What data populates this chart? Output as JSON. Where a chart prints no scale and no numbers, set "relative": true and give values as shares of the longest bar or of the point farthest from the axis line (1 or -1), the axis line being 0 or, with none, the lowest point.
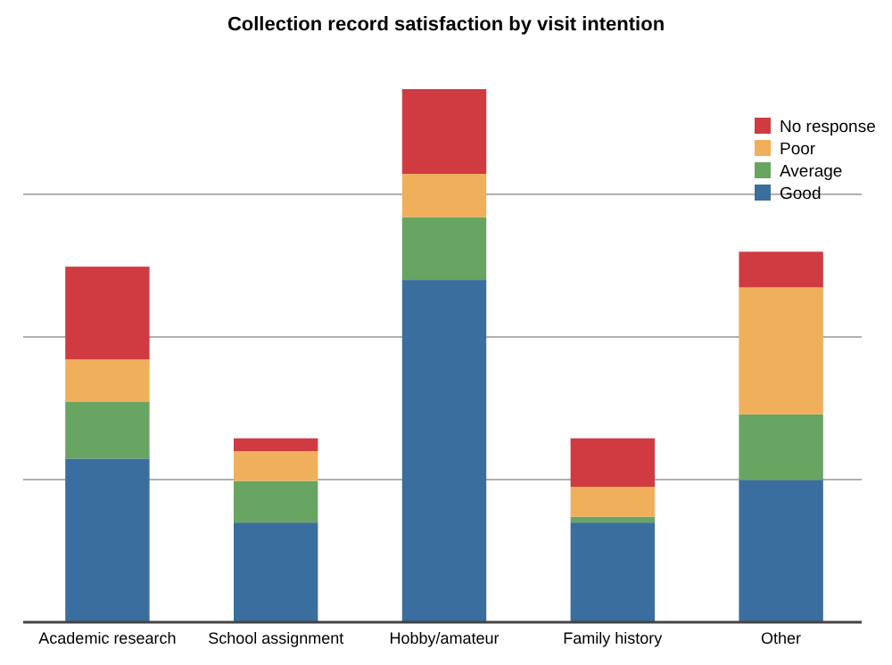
{
  "chart_data": {
    "type": "bar",
    "title": "Collection record satisfaction by visit intention",
    "categories": [
      "Academic research",
      "School assignment",
      "Hobby/amateur",
      "Family history",
      "Other"
    ],
    "stacked": true,
    "relative": true,
    "grid": "y",
    "legend": "top right",
    "series": [
      {
        "name": "Good",
        "color": "#3a6e9e",
        "values": [
          0.307,
          0.187,
          0.642,
          0.187,
          0.267
        ]
      },
      {
        "name": "Average",
        "color": "#68a462",
        "values": [
          0.106,
          0.078,
          0.118,
          0.011,
          0.123
        ]
      },
      {
        "name": "Poor",
        "color": "#efaf5b",
        "values": [
          0.08,
          0.056,
          0.081,
          0.056,
          0.238
        ]
      },
      {
        "name": "No response",
        "color": "#cf3b40",
        "values": [
          0.174,
          0.024,
          0.159,
          0.091,
          0.067
        ]
      }
    ]
  }
}
